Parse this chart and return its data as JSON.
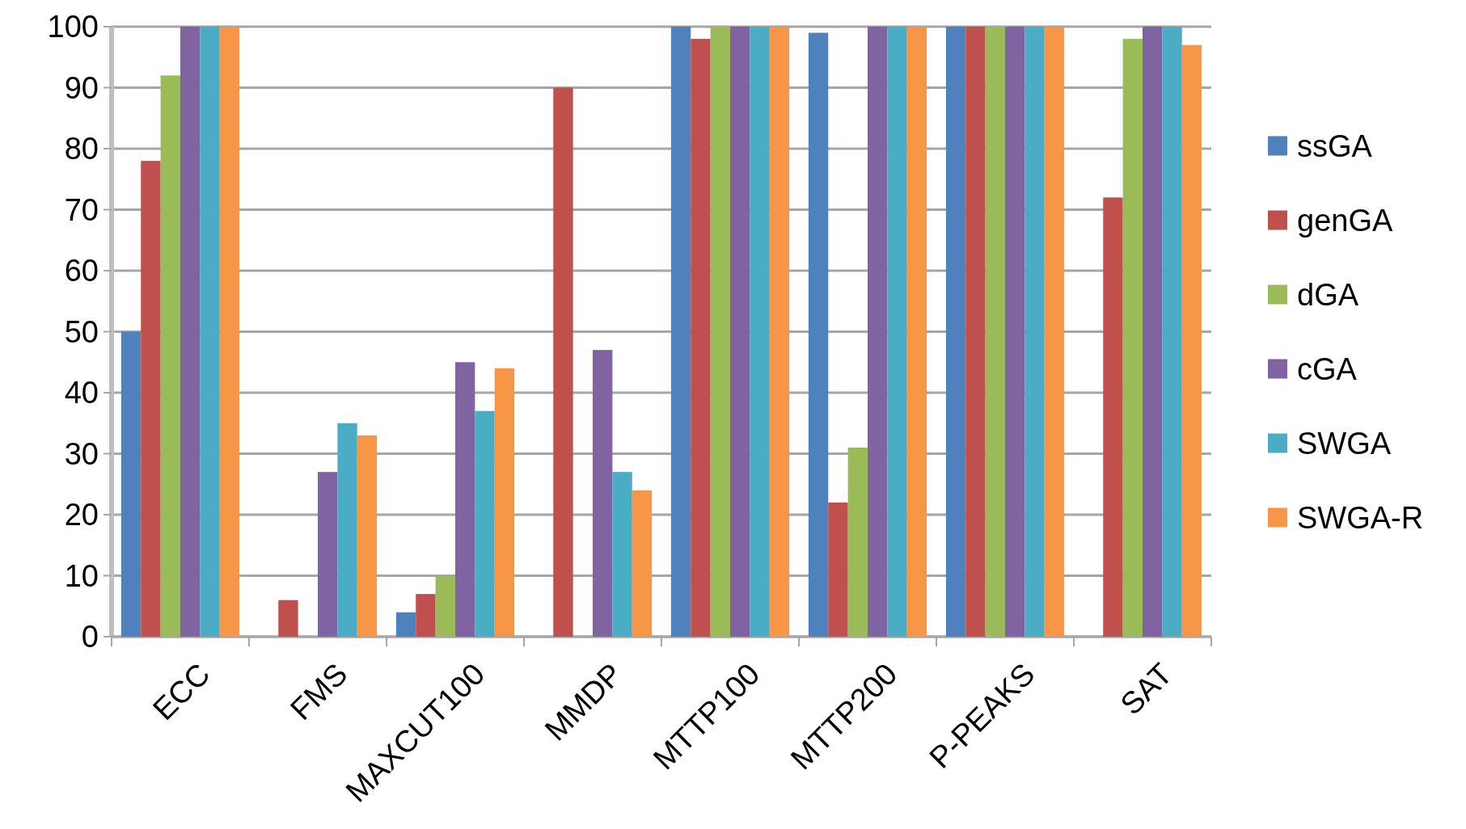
{
  "chart_data": {
    "type": "bar",
    "categories": [
      "ECC",
      "FMS",
      "MAXCUT100",
      "MMDP",
      "MTTP100",
      "MTTP200",
      "P-PEAKS",
      "SAT"
    ],
    "series": [
      {
        "name": "ssGA",
        "color": "#4f81bd",
        "values": [
          50,
          0,
          4,
          0,
          100,
          99,
          100,
          0
        ]
      },
      {
        "name": "genGA",
        "color": "#c0504d",
        "values": [
          78,
          6,
          7,
          90,
          98,
          22,
          100,
          72
        ]
      },
      {
        "name": "dGA",
        "color": "#9bbb59",
        "values": [
          92,
          0,
          10,
          0,
          100,
          31,
          100,
          98
        ]
      },
      {
        "name": "cGA",
        "color": "#8064a2",
        "values": [
          100,
          27,
          45,
          47,
          100,
          100,
          100,
          100
        ]
      },
      {
        "name": "SWGA",
        "color": "#4bacc6",
        "values": [
          100,
          35,
          37,
          27,
          100,
          100,
          100,
          100
        ]
      },
      {
        "name": "SWGA-R",
        "color": "#f79646",
        "values": [
          100,
          33,
          44,
          24,
          100,
          100,
          100,
          97
        ]
      }
    ],
    "ylim": [
      0,
      100
    ],
    "yticks": [
      0,
      10,
      20,
      30,
      40,
      50,
      60,
      70,
      80,
      90,
      100
    ],
    "grid": "y",
    "legend": "right"
  }
}
